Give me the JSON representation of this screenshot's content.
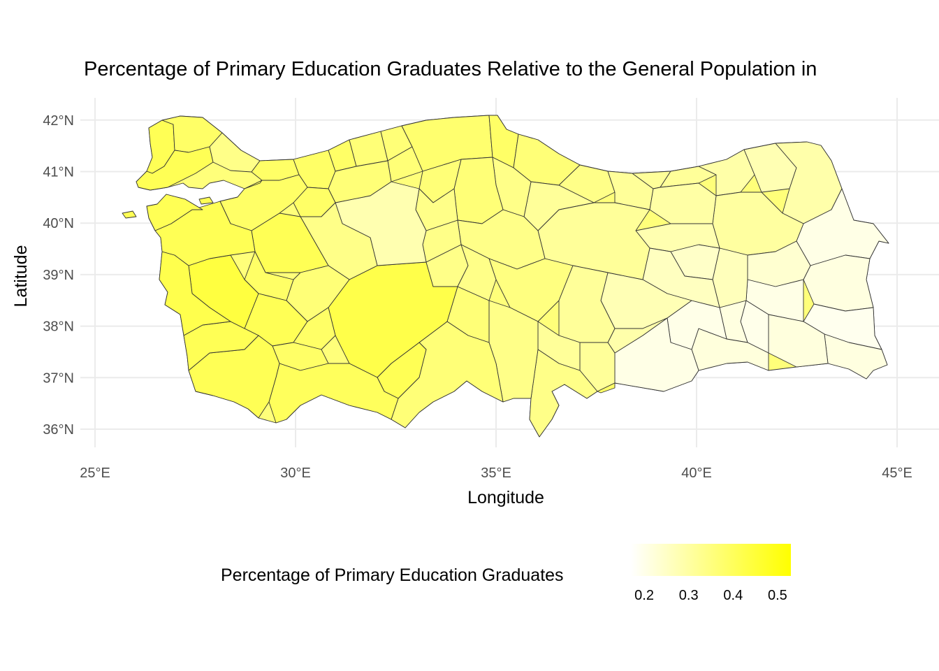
{
  "chart_data": {
    "type": "choropleth",
    "title": "Percentage of Primary Education Graduates Relative to the General Population in",
    "xlabel": "Longitude",
    "ylabel": "Latitude",
    "x_ticks": [
      "25°E",
      "30°E",
      "35°E",
      "40°E",
      "45°E"
    ],
    "y_ticks": [
      "36°N",
      "37°N",
      "38°N",
      "39°N",
      "40°N",
      "41°N",
      "42°N"
    ],
    "x_tick_values": [
      25,
      30,
      35,
      40,
      45
    ],
    "y_tick_values": [
      36,
      37,
      38,
      39,
      40,
      41,
      42
    ],
    "xlim": [
      24.8,
      45.4
    ],
    "ylim": [
      35.6,
      42.3
    ],
    "grid": true,
    "legend": {
      "title": "Percentage of Primary Education Graduates",
      "position": "bottom",
      "ticks": [
        "0.2",
        "0.3",
        "0.4",
        "0.5"
      ],
      "tick_values": [
        0.2,
        0.3,
        0.4,
        0.5
      ],
      "range": [
        0.17,
        0.53
      ],
      "low_color": "#ffffff",
      "high_color": "#ffff00"
    }
  }
}
